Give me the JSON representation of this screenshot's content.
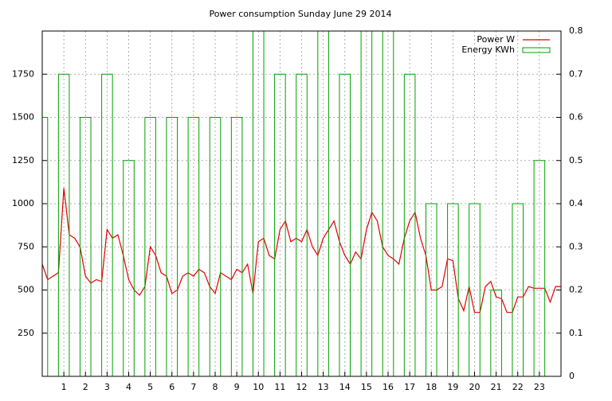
{
  "chart_data": {
    "type": "line",
    "title": "Power consumption Sunday June 29 2014",
    "x": [
      0,
      0.25,
      0.5,
      0.75,
      1,
      1.25,
      1.5,
      1.75,
      2,
      2.25,
      2.5,
      2.75,
      3,
      3.25,
      3.5,
      3.75,
      4,
      4.25,
      4.5,
      4.75,
      5,
      5.25,
      5.5,
      5.75,
      6,
      6.25,
      6.5,
      6.75,
      7,
      7.25,
      7.5,
      7.75,
      8,
      8.25,
      8.5,
      8.75,
      9,
      9.25,
      9.5,
      9.75,
      10,
      10.25,
      10.5,
      10.75,
      11,
      11.25,
      11.5,
      11.75,
      12,
      12.25,
      12.5,
      12.75,
      13,
      13.25,
      13.5,
      13.75,
      14,
      14.25,
      14.5,
      14.75,
      15,
      15.25,
      15.5,
      15.75,
      16,
      16.25,
      16.5,
      16.75,
      17,
      17.25,
      17.5,
      17.75,
      18,
      18.25,
      18.5,
      18.75,
      19,
      19.25,
      19.5,
      19.75,
      20,
      20.25,
      20.5,
      20.75,
      21,
      21.25,
      21.5,
      21.75,
      22,
      22.25,
      22.5,
      22.75,
      23,
      23.25,
      23.5,
      23.75,
      24
    ],
    "series": [
      {
        "name": "Power W",
        "color": "#e00000",
        "axis": "y",
        "values": [
          650,
          560,
          580,
          600,
          1090,
          820,
          800,
          750,
          580,
          540,
          560,
          550,
          850,
          800,
          820,
          700,
          560,
          500,
          470,
          520,
          750,
          700,
          600,
          580,
          480,
          500,
          580,
          600,
          580,
          620,
          600,
          520,
          480,
          600,
          580,
          560,
          620,
          600,
          650,
          480,
          780,
          800,
          700,
          680,
          850,
          900,
          780,
          800,
          780,
          850,
          750,
          700,
          800,
          850,
          900,
          780,
          700,
          650,
          720,
          680,
          850,
          950,
          900,
          750,
          700,
          680,
          650,
          800,
          900,
          950,
          800,
          700,
          500,
          500,
          520,
          680,
          670,
          450,
          380,
          520,
          370,
          370,
          520,
          550,
          460,
          450,
          370,
          370,
          460,
          460,
          520,
          510,
          510,
          510,
          430,
          520,
          520
        ]
      },
      {
        "name": "Energy KWh",
        "color": "#00a000",
        "axis": "y2",
        "type": "bar",
        "x": [
          0,
          1,
          2,
          3,
          4,
          5,
          6,
          7,
          8,
          9,
          10,
          11,
          12,
          13,
          14,
          15,
          16,
          17,
          18,
          19,
          20,
          21,
          22,
          23
        ],
        "values": [
          0.6,
          0.7,
          0.6,
          0.7,
          0.5,
          0.6,
          0.6,
          0.6,
          0.6,
          0.6,
          0.8,
          0.7,
          0.7,
          0.8,
          0.7,
          0.8,
          0.8,
          0.7,
          0.4,
          0.4,
          0.4,
          0.2,
          0.4,
          0.5
        ]
      }
    ],
    "xlim": [
      0,
      24
    ],
    "xticks": [
      1,
      2,
      3,
      4,
      5,
      6,
      7,
      8,
      9,
      10,
      11,
      12,
      13,
      14,
      15,
      16,
      17,
      18,
      19,
      20,
      21,
      22,
      23
    ],
    "ylim": [
      0,
      2000
    ],
    "yticks": [
      250,
      500,
      750,
      1000,
      1250,
      1500,
      1750
    ],
    "y2lim": [
      0,
      0.8
    ],
    "y2ticks": [
      0,
      0.1,
      0.2,
      0.3,
      0.4,
      0.5,
      0.6,
      0.7,
      0.8
    ],
    "grid": true,
    "legend": "top-right"
  }
}
